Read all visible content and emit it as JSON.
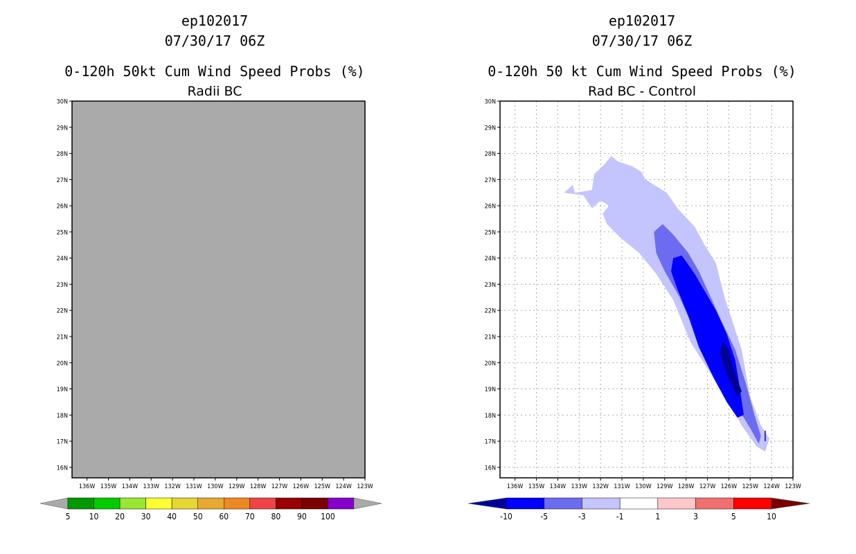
{
  "left_panel": {
    "storm_id": "ep102017",
    "datetime": "07/30/17 06Z",
    "title": "0-120h 50kt Cum Wind Speed Probs (%)",
    "subtitle": "Radii BC",
    "background_color": "#aaaaaa"
  },
  "right_panel": {
    "storm_id": "ep102017",
    "datetime": "07/30/17 06Z",
    "title": "0-120h 50 kt Cum Wind Speed Probs (%)",
    "subtitle": "Rad BC - Control"
  },
  "chart_data": [
    {
      "type": "heatmap",
      "title": "0-120h 50kt Cum Wind Speed Probs (%)",
      "subtitle": "Radii BC",
      "x_ticks": [
        "136W",
        "135W",
        "134W",
        "133W",
        "132W",
        "131W",
        "130W",
        "129W",
        "128W",
        "127W",
        "126W",
        "125W",
        "124W",
        "123W"
      ],
      "x_values": [
        -136,
        -135,
        -134,
        -133,
        -132,
        -131,
        -130,
        -129,
        -128,
        -127,
        -126,
        -125,
        -124,
        -123
      ],
      "y_ticks": [
        "16N",
        "17N",
        "18N",
        "19N",
        "20N",
        "21N",
        "22N",
        "23N",
        "24N",
        "25N",
        "26N",
        "27N",
        "28N",
        "29N",
        "30N"
      ],
      "y_values": [
        16,
        17,
        18,
        19,
        20,
        21,
        22,
        23,
        24,
        25,
        26,
        27,
        28,
        29,
        30
      ],
      "xlim": [
        -136.7,
        -123
      ],
      "ylim": [
        15.6,
        30
      ],
      "grid": false,
      "field": "undefined (all grey)",
      "colorbar": {
        "labels": [
          "5",
          "10",
          "20",
          "30",
          "40",
          "50",
          "60",
          "70",
          "80",
          "90",
          "100"
        ],
        "colors": [
          "#009900",
          "#00cc00",
          "#99e633",
          "#ffff33",
          "#e6d633",
          "#e6aa33",
          "#ee8822",
          "#ee4444",
          "#990000",
          "#7a0000",
          "#8800cc"
        ],
        "end_colors": [
          "#aaaaaa",
          "#aaaaaa"
        ]
      }
    },
    {
      "type": "heatmap",
      "title": "0-120h 50 kt Cum Wind Speed Probs (%)",
      "subtitle": "Rad BC - Control",
      "x_ticks": [
        "136W",
        "135W",
        "134W",
        "133W",
        "132W",
        "131W",
        "130W",
        "129W",
        "128W",
        "127W",
        "126W",
        "125W",
        "124W",
        "123W"
      ],
      "x_values": [
        -136,
        -135,
        -134,
        -133,
        -132,
        -131,
        -130,
        -129,
        -128,
        -127,
        -126,
        -125,
        -124,
        -123
      ],
      "y_ticks": [
        "16N",
        "17N",
        "18N",
        "19N",
        "20N",
        "21N",
        "22N",
        "23N",
        "24N",
        "25N",
        "26N",
        "27N",
        "28N",
        "29N",
        "30N"
      ],
      "y_values": [
        16,
        17,
        18,
        19,
        20,
        21,
        22,
        23,
        24,
        25,
        26,
        27,
        28,
        29,
        30
      ],
      "xlim": [
        -136.7,
        -123
      ],
      "ylim": [
        15.6,
        30
      ],
      "grid": true,
      "contour_levels": [
        {
          "level": "-1 to -3",
          "color": "#c4c4ff",
          "points": [
            [
              -133.7,
              26.5
            ],
            [
              -133.3,
              26.8
            ],
            [
              -133.2,
              26.5
            ],
            [
              -132.4,
              26.6
            ],
            [
              -132.3,
              27.2
            ],
            [
              -131.8,
              27.6
            ],
            [
              -131.5,
              27.9
            ],
            [
              -131.2,
              27.7
            ],
            [
              -130.5,
              27.5
            ],
            [
              -130.1,
              27.3
            ],
            [
              -129.9,
              27.0
            ],
            [
              -128.9,
              26.5
            ],
            [
              -128.4,
              25.9
            ],
            [
              -127.6,
              25.2
            ],
            [
              -127.2,
              24.6
            ],
            [
              -126.6,
              23.8
            ],
            [
              -126.2,
              22.5
            ],
            [
              -125.4,
              20.5
            ],
            [
              -125.0,
              18.7
            ],
            [
              -124.5,
              17.6
            ],
            [
              -124.1,
              17.1
            ],
            [
              -124.3,
              16.6
            ],
            [
              -124.7,
              16.8
            ],
            [
              -125.4,
              17.6
            ],
            [
              -126.2,
              18.8
            ],
            [
              -127.1,
              19.9
            ],
            [
              -127.8,
              20.8
            ],
            [
              -128.6,
              22.4
            ],
            [
              -129.4,
              23.4
            ],
            [
              -130.2,
              24.2
            ],
            [
              -131.1,
              24.8
            ],
            [
              -131.7,
              25.3
            ],
            [
              -131.9,
              25.7
            ],
            [
              -131.6,
              26.0
            ],
            [
              -132.0,
              26.2
            ],
            [
              -132.4,
              25.9
            ],
            [
              -132.8,
              26.4
            ]
          ]
        },
        {
          "level": "-3 to -5",
          "color": "#6c6cf0",
          "points": [
            [
              -129.5,
              25.0
            ],
            [
              -129.1,
              25.3
            ],
            [
              -128.6,
              24.9
            ],
            [
              -127.9,
              24.2
            ],
            [
              -127.4,
              23.5
            ],
            [
              -126.9,
              22.6
            ],
            [
              -126.4,
              21.7
            ],
            [
              -125.7,
              20.5
            ],
            [
              -125.2,
              19.2
            ],
            [
              -124.8,
              18.0
            ],
            [
              -124.5,
              17.2
            ],
            [
              -124.6,
              16.9
            ],
            [
              -125.0,
              17.5
            ],
            [
              -125.6,
              18.3
            ],
            [
              -126.3,
              19.3
            ],
            [
              -127.0,
              20.3
            ],
            [
              -127.7,
              21.4
            ],
            [
              -128.3,
              22.5
            ],
            [
              -129.0,
              23.5
            ],
            [
              -129.4,
              24.2
            ]
          ]
        },
        {
          "level": "-5 to -10",
          "color": "#0000ff",
          "points": [
            [
              -128.6,
              24.0
            ],
            [
              -128.2,
              24.1
            ],
            [
              -127.6,
              23.4
            ],
            [
              -127.1,
              22.7
            ],
            [
              -126.6,
              22.0
            ],
            [
              -126.1,
              21.1
            ],
            [
              -125.7,
              20.1
            ],
            [
              -125.5,
              19.1
            ],
            [
              -125.3,
              18.0
            ],
            [
              -125.6,
              17.9
            ],
            [
              -126.1,
              18.5
            ],
            [
              -126.7,
              19.4
            ],
            [
              -127.4,
              20.6
            ],
            [
              -127.9,
              21.8
            ],
            [
              -128.4,
              22.8
            ],
            [
              -128.7,
              23.5
            ]
          ]
        },
        {
          "level": "< -10",
          "color": "#000099",
          "points": [
            [
              -126.3,
              20.8
            ],
            [
              -126.0,
              20.5
            ],
            [
              -125.8,
              19.8
            ],
            [
              -125.4,
              18.9
            ],
            [
              -125.6,
              18.7
            ],
            [
              -125.9,
              19.2
            ],
            [
              -126.2,
              19.8
            ],
            [
              -126.4,
              20.4
            ]
          ]
        }
      ],
      "colorbar": {
        "labels": [
          "-10",
          "-5",
          "-3",
          "-1",
          "1",
          "3",
          "5",
          "10"
        ],
        "colors": [
          "#0000ff",
          "#6c6cf0",
          "#c4c4ff",
          "#ffffff",
          "#ffc8c8",
          "#f07070",
          "#ff0000"
        ],
        "end_colors": [
          "#000099",
          "#7a0000"
        ]
      }
    }
  ]
}
